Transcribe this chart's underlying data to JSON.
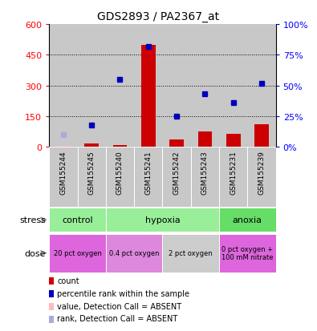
{
  "title": "GDS2893 / PA2367_at",
  "samples": [
    "GSM155244",
    "GSM155245",
    "GSM155240",
    "GSM155241",
    "GSM155242",
    "GSM155243",
    "GSM155231",
    "GSM155239"
  ],
  "count_values": [
    null,
    15,
    10,
    500,
    35,
    75,
    65,
    110
  ],
  "count_absent": [
    5,
    null,
    null,
    null,
    null,
    null,
    null,
    null
  ],
  "rank_values_pct": [
    null,
    18,
    55,
    82,
    25,
    43,
    36,
    52
  ],
  "rank_absent_pct": [
    10,
    null,
    null,
    null,
    null,
    null,
    null,
    null
  ],
  "ylim_left": [
    0,
    600
  ],
  "ylim_right": [
    0,
    100
  ],
  "left_ticks": [
    0,
    150,
    300,
    450,
    600
  ],
  "right_ticks": [
    0,
    25,
    50,
    75,
    100
  ],
  "left_tick_labels": [
    "0",
    "150",
    "300",
    "450",
    "600"
  ],
  "right_tick_labels": [
    "0%",
    "25%",
    "50%",
    "75%",
    "100%"
  ],
  "bar_color": "#cc0000",
  "bar_absent_color": "#ffbbbb",
  "rank_color": "#0000bb",
  "rank_absent_color": "#aaaadd",
  "stress_groups": [
    {
      "label": "control",
      "start": 0,
      "end": 2,
      "color": "#99ee99"
    },
    {
      "label": "hypoxia",
      "start": 2,
      "end": 6,
      "color": "#99ee99"
    },
    {
      "label": "anoxia",
      "start": 6,
      "end": 8,
      "color": "#66dd66"
    }
  ],
  "dose_groups": [
    {
      "label": "20 pct oxygen",
      "start": 0,
      "end": 2,
      "color": "#dd66dd"
    },
    {
      "label": "0.4 pct oxygen",
      "start": 2,
      "end": 4,
      "color": "#dd88dd"
    },
    {
      "label": "2 pct oxygen",
      "start": 4,
      "end": 6,
      "color": "#cccccc"
    },
    {
      "label": "0 pct oxygen +\n100 mM nitrate",
      "start": 6,
      "end": 8,
      "color": "#dd66dd"
    }
  ],
  "legend_items": [
    {
      "color": "#cc0000",
      "label": "count"
    },
    {
      "color": "#0000bb",
      "label": "percentile rank within the sample"
    },
    {
      "color": "#ffbbbb",
      "label": "value, Detection Call = ABSENT"
    },
    {
      "color": "#aaaadd",
      "label": "rank, Detection Call = ABSENT"
    }
  ],
  "stress_label": "stress",
  "dose_label": "dose",
  "bar_width": 0.5,
  "marker_size": 5,
  "sample_bg_color": "#c8c8c8",
  "bg_color": "#ffffff"
}
